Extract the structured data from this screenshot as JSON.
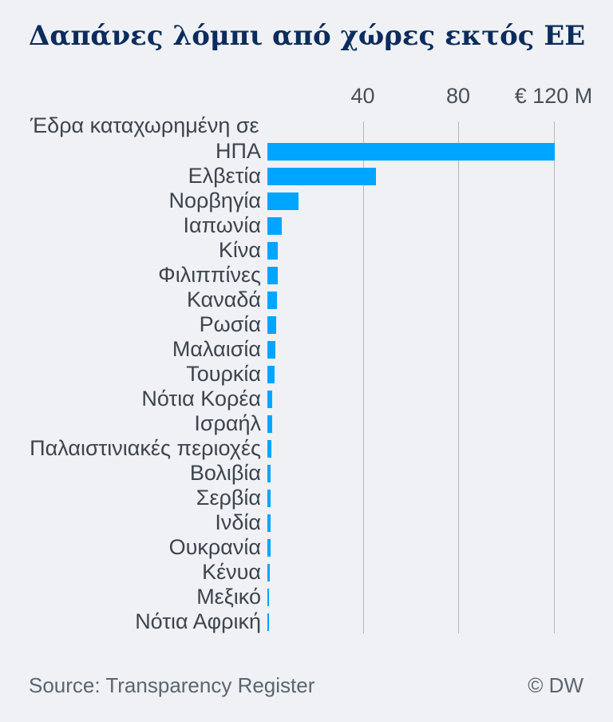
{
  "header": {
    "title": "Δαπάνες λόμπι από χώρες εκτός ΕΕ"
  },
  "footer": {
    "source": "Source: Transparency Register",
    "copyright": "© DW"
  },
  "colors": {
    "background": "#eff1f4",
    "bar": "#00a5ff",
    "title": "#0c2c5d",
    "label": "#3d444e",
    "tick_label": "#474f58",
    "gridline": "#b5b8bd",
    "footer_text": "#5b6570"
  },
  "chart_data": {
    "type": "bar",
    "orientation": "horizontal",
    "title": "Δαπάνες λόμπι από χώρες εκτός ΕΕ",
    "unit": "€ million",
    "ylabel_header": "Έδρα καταχωρημένη σε",
    "xlim": [
      0,
      130
    ],
    "grid": true,
    "legend": false,
    "xticks": [
      {
        "value": 40,
        "label": "40"
      },
      {
        "value": 80,
        "label": "80"
      },
      {
        "value": 120,
        "label": "€ 120 M"
      }
    ],
    "categories": [
      "ΗΠΑ",
      "Ελβετία",
      "Νορβηγία",
      "Ιαπωνία",
      "Κίνα",
      "Φιλιππίνες",
      "Καναδά",
      "Ρωσία",
      "Μαλαισία",
      "Τουρκία",
      "Νότια Κορέα",
      "Ισραήλ",
      "Παλαιστινιακές περιοχές",
      "Βολιβία",
      "Σερβία",
      "Ινδία",
      "Ουκρανία",
      "Κένυα",
      "Μεξικό",
      "Νότια Αφρική"
    ],
    "values": [
      120.5,
      45.5,
      13.2,
      6.1,
      4.3,
      4.2,
      4.0,
      3.8,
      3.2,
      3.1,
      2.1,
      2.0,
      1.7,
      1.4,
      1.4,
      1.2,
      1.2,
      1.0,
      0.8,
      0.8
    ]
  }
}
